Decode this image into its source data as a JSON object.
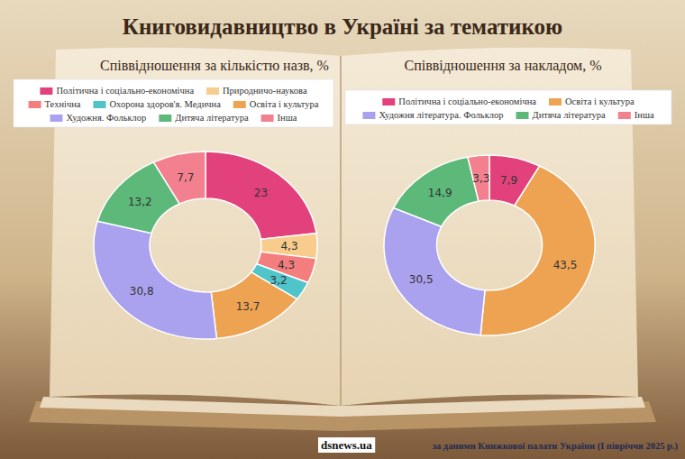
{
  "header": {
    "title": "Книговидавництво в Україні за тематикою"
  },
  "footer": {
    "site": "dsnews.ua",
    "source": "за даними Книжкової палати України (І півріччя 2025 р.)"
  },
  "chart_data": [
    {
      "type": "pie",
      "title": "Співвідношення за кількістю назв, %",
      "categories": [
        "Політична і соціально-економічна",
        "Природничо-наукова",
        "Технічна",
        "Охорона здоров'я. Медична",
        "Освіта і культура",
        "Художня. Фольклор",
        "Дитяча література",
        "Інша"
      ],
      "values": [
        23,
        4.3,
        4.3,
        3.2,
        13.7,
        30.8,
        13.2,
        7.7
      ],
      "value_labels": [
        "23",
        "4,3",
        "4,3",
        "3,2",
        "13,7",
        "30,8",
        "13,2",
        "7,7"
      ],
      "colors": [
        "#e2417c",
        "#f8cc8c",
        "#f47e7e",
        "#4fc4c9",
        "#eea352",
        "#aaa2ee",
        "#5cb97a",
        "#f3808f"
      ],
      "data_labels": true,
      "legend": "top"
    },
    {
      "type": "pie",
      "title": "Співвідношення за накладом, %",
      "categories": [
        "Політична і соціально-економічна",
        "Освіта і культура",
        "Художня література. Фольклор",
        "Дитяча література",
        "Інша"
      ],
      "values": [
        7.9,
        43.5,
        30.5,
        14.9,
        3.3
      ],
      "value_labels": [
        "7,9",
        "43,5",
        "30,5",
        "14,9",
        "3,3"
      ],
      "colors": [
        "#e2417c",
        "#eea352",
        "#aaa2ee",
        "#5cb97a",
        "#f3808f"
      ],
      "data_labels": true,
      "legend": "top"
    }
  ]
}
